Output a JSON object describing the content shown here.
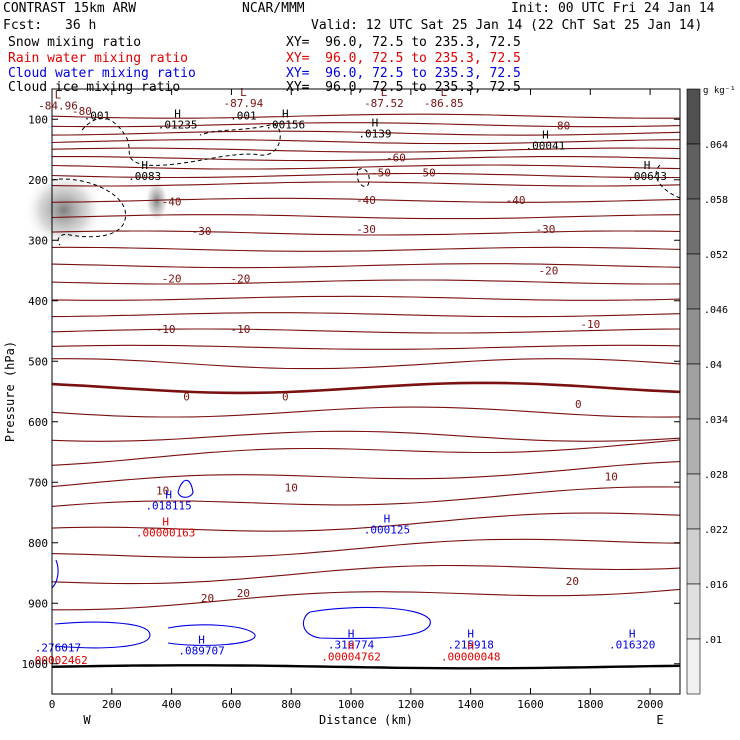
{
  "header": {
    "model": "CONTRAST 15km ARW",
    "org": "NCAR/MMM",
    "init": "Init: 00 UTC Fri 24 Jan 14",
    "fcst_label": "Fcst:",
    "fcst_value": "36 h",
    "valid": "Valid: 12 UTC Sat 25 Jan 14 (22 ChT Sat 25 Jan 14)",
    "fields": [
      {
        "name": "Snow mixing ratio",
        "xy": "XY=  96.0, 72.5 to 235.3, 72.5",
        "color": "#000000"
      },
      {
        "name": "Rain water mixing ratio",
        "xy": "XY=  96.0, 72.5 to 235.3, 72.5",
        "color": "#e00000"
      },
      {
        "name": "Cloud water mixing ratio",
        "xy": "XY=  96.0, 72.5 to 235.3, 72.5",
        "color": "#0000e0"
      },
      {
        "name": "Cloud ice mixing ratio",
        "xy": "XY=  96.0, 72.5 to 235.3, 72.5",
        "color": "#000000"
      }
    ]
  },
  "chart_data": {
    "type": "cross-section",
    "xlabel": "Distance (km)",
    "ylabel": "Pressure (hPa)",
    "xlim": [
      0,
      2100
    ],
    "ylim": [
      1050,
      50
    ],
    "xticks": [
      0,
      200,
      400,
      600,
      800,
      1000,
      1200,
      1400,
      1600,
      1800,
      2000
    ],
    "yticks": [
      100,
      200,
      300,
      400,
      500,
      600,
      700,
      800,
      900,
      1000
    ],
    "x_end_labels": {
      "left": "W",
      "right": "E"
    },
    "colorbar": {
      "unit": "g kg⁻¹",
      "ticks": [
        ".064",
        ".058",
        ".052",
        ".046",
        ".04",
        ".034",
        ".028",
        ".022",
        ".016",
        ".01"
      ],
      "colors": [
        "#505050",
        "#606060",
        "#707070",
        "#808080",
        "#909090",
        "#a0a0a0",
        "#b0b0b0",
        "#c0c0c0",
        "#d0d0d0",
        "#e0e0e0",
        "#f0f0f0"
      ]
    },
    "temperature_contours": {
      "color": "#7a1010",
      "labels": [
        {
          "x": 100,
          "p": 88,
          "t": "-80"
        },
        {
          "x": 1700,
          "p": 112,
          "t": "-80"
        },
        {
          "x": 1150,
          "p": 165,
          "t": "-60"
        },
        {
          "x": 1100,
          "p": 190,
          "t": "-50"
        },
        {
          "x": 1250,
          "p": 190,
          "t": "-50"
        },
        {
          "x": 400,
          "p": 238,
          "t": "-40"
        },
        {
          "x": 1050,
          "p": 235,
          "t": "-40"
        },
        {
          "x": 1550,
          "p": 235,
          "t": "-40"
        },
        {
          "x": 500,
          "p": 286,
          "t": "-30"
        },
        {
          "x": 1050,
          "p": 283,
          "t": "-30"
        },
        {
          "x": 1650,
          "p": 283,
          "t": "-30"
        },
        {
          "x": 400,
          "p": 365,
          "t": "-20"
        },
        {
          "x": 630,
          "p": 365,
          "t": "-20"
        },
        {
          "x": 1660,
          "p": 352,
          "t": "-20"
        },
        {
          "x": 380,
          "p": 448,
          "t": "-10"
        },
        {
          "x": 630,
          "p": 448,
          "t": "-10"
        },
        {
          "x": 1800,
          "p": 440,
          "t": "-10"
        },
        {
          "x": 450,
          "p": 560,
          "t": "0"
        },
        {
          "x": 780,
          "p": 560,
          "t": "0"
        },
        {
          "x": 1760,
          "p": 572,
          "t": "0"
        },
        {
          "x": 370,
          "p": 715,
          "t": "10"
        },
        {
          "x": 800,
          "p": 710,
          "t": "10"
        },
        {
          "x": 1870,
          "p": 692,
          "t": "10"
        },
        {
          "x": 520,
          "p": 893,
          "t": "20"
        },
        {
          "x": 640,
          "p": 885,
          "t": "20"
        },
        {
          "x": 1740,
          "p": 865,
          "t": "20"
        }
      ]
    },
    "extrema_labels": [
      {
        "x": 20,
        "p": 84,
        "m": "L",
        "v": "-84.96",
        "color": "#7a1010"
      },
      {
        "x": 150,
        "p": 100,
        "m": "",
        "v": ".001",
        "color": "#000000"
      },
      {
        "x": 640,
        "p": 80,
        "m": "L",
        "v": "-87.94",
        "color": "#7a1010"
      },
      {
        "x": 640,
        "p": 100,
        "m": "",
        "v": ".001",
        "color": "#000000"
      },
      {
        "x": 1110,
        "p": 80,
        "m": "L",
        "v": "-87.52",
        "color": "#7a1010"
      },
      {
        "x": 1310,
        "p": 80,
        "m": "L",
        "v": "-86.85",
        "color": "#7a1010"
      },
      {
        "x": 420,
        "p": 115,
        "m": "H",
        "v": ".01235",
        "color": "#000000"
      },
      {
        "x": 780,
        "p": 115,
        "m": "H",
        "v": ".00156",
        "color": "#000000"
      },
      {
        "x": 1080,
        "p": 130,
        "m": "H",
        "v": ".0139",
        "color": "#000000"
      },
      {
        "x": 1650,
        "p": 150,
        "m": "H",
        "v": ".00041",
        "color": "#000000"
      },
      {
        "x": 1990,
        "p": 200,
        "m": "H",
        "v": ".00643",
        "color": "#000000"
      },
      {
        "x": 310,
        "p": 200,
        "m": "H",
        "v": ".0083",
        "color": "#000000"
      },
      {
        "x": 390,
        "p": 745,
        "m": "H",
        "v": ".018115",
        "color": "#0000e0"
      },
      {
        "x": 380,
        "p": 790,
        "m": "H",
        "v": ".00000163",
        "color": "#e00000"
      },
      {
        "x": 1120,
        "p": 785,
        "m": "H",
        "v": ".000125",
        "color": "#0000e0"
      },
      {
        "x": 20,
        "p": 980,
        "m": "",
        "v": ".276017",
        "color": "#0000e0"
      },
      {
        "x": 20,
        "p": 1000,
        "m": "",
        "v": ".00002462",
        "color": "#e00000"
      },
      {
        "x": 500,
        "p": 985,
        "m": "H",
        "v": ".089707",
        "color": "#0000e0"
      },
      {
        "x": 1000,
        "p": 975,
        "m": "H",
        "v": ".316774",
        "color": "#0000e0"
      },
      {
        "x": 1000,
        "p": 995,
        "m": "H",
        "v": ".00004762",
        "color": "#e00000"
      },
      {
        "x": 1400,
        "p": 975,
        "m": "H",
        "v": ".215918",
        "color": "#0000e0"
      },
      {
        "x": 1400,
        "p": 995,
        "m": "H",
        "v": ".00000048",
        "color": "#e00000"
      },
      {
        "x": 1940,
        "p": 975,
        "m": "H",
        "v": ".016320",
        "color": "#0000e0"
      }
    ]
  }
}
